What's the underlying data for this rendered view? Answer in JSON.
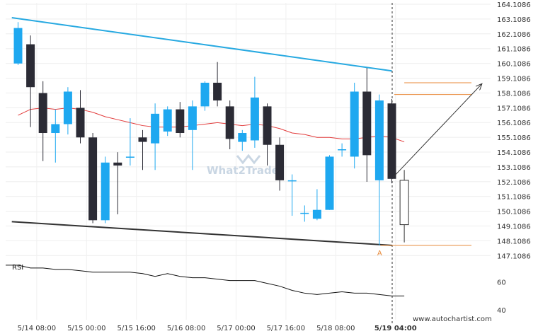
{
  "chart_data": {
    "type": "candlestick",
    "y_ticks": [
      "164.1086",
      "163.1086",
      "162.1086",
      "161.1086",
      "160.1086",
      "159.1086",
      "158.1086",
      "157.1086",
      "156.1086",
      "155.1086",
      "154.1086",
      "153.1086",
      "152.1086",
      "151.1086",
      "150.1086",
      "149.1086",
      "148.1086",
      "147.1086"
    ],
    "y_range": [
      146.6,
      164.2
    ],
    "x_ticks": [
      {
        "label": "5/14 08:00",
        "bar": 1.5
      },
      {
        "label": "5/15 00:00",
        "bar": 5.5
      },
      {
        "label": "5/15 16:00",
        "bar": 9.5
      },
      {
        "label": "5/16 08:00",
        "bar": 13.5
      },
      {
        "label": "5/17 00:00",
        "bar": 17.5
      },
      {
        "label": "5/17 16:00",
        "bar": 21.5
      },
      {
        "label": "5/18 08:00",
        "bar": 25.5
      },
      {
        "label": "5/19 04:00",
        "bar": 30.3,
        "bold": true
      }
    ],
    "candles": [
      {
        "o": 160.1,
        "h": 162.9,
        "l": 160.0,
        "c": 162.5
      },
      {
        "o": 161.4,
        "h": 162.0,
        "l": 155.8,
        "c": 158.5
      },
      {
        "o": 158.1,
        "h": 158.9,
        "l": 153.5,
        "c": 155.4
      },
      {
        "o": 155.4,
        "h": 157.0,
        "l": 153.4,
        "c": 156.0
      },
      {
        "o": 156.0,
        "h": 158.5,
        "l": 155.3,
        "c": 158.2
      },
      {
        "o": 157.1,
        "h": 158.3,
        "l": 154.7,
        "c": 155.1
      },
      {
        "o": 155.1,
        "h": 155.4,
        "l": 149.3,
        "c": 149.5
      },
      {
        "o": 149.5,
        "h": 153.8,
        "l": 149.3,
        "c": 153.4
      },
      {
        "o": 153.4,
        "h": 154.1,
        "l": 149.9,
        "c": 153.2
      },
      {
        "o": 153.8,
        "h": 156.4,
        "l": 153.2,
        "c": 153.8
      },
      {
        "o": 155.1,
        "h": 155.6,
        "l": 152.9,
        "c": 154.8
      },
      {
        "o": 154.7,
        "h": 157.4,
        "l": 152.9,
        "c": 156.7
      },
      {
        "o": 155.5,
        "h": 157.2,
        "l": 155.2,
        "c": 157.0
      },
      {
        "o": 157.0,
        "h": 157.5,
        "l": 155.1,
        "c": 155.4
      },
      {
        "o": 155.6,
        "h": 157.6,
        "l": 152.9,
        "c": 157.2
      },
      {
        "o": 157.2,
        "h": 158.9,
        "l": 156.9,
        "c": 158.8
      },
      {
        "o": 158.8,
        "h": 160.2,
        "l": 157.2,
        "c": 157.6
      },
      {
        "o": 157.2,
        "h": 157.6,
        "l": 154.3,
        "c": 155.0
      },
      {
        "o": 154.8,
        "h": 155.6,
        "l": 154.2,
        "c": 155.4
      },
      {
        "o": 154.9,
        "h": 159.2,
        "l": 154.4,
        "c": 157.8
      },
      {
        "o": 157.2,
        "h": 157.4,
        "l": 153.2,
        "c": 154.6
      },
      {
        "o": 154.6,
        "h": 155.1,
        "l": 151.5,
        "c": 152.2
      },
      {
        "o": 152.2,
        "h": 152.6,
        "l": 149.8,
        "c": 152.2
      },
      {
        "o": 150.0,
        "h": 150.5,
        "l": 149.4,
        "c": 150.0
      },
      {
        "o": 149.6,
        "h": 151.6,
        "l": 149.5,
        "c": 150.2
      },
      {
        "o": 150.2,
        "h": 153.9,
        "l": 150.2,
        "c": 153.8
      },
      {
        "o": 154.3,
        "h": 154.7,
        "l": 153.8,
        "c": 154.3
      },
      {
        "o": 153.8,
        "h": 158.8,
        "l": 153.0,
        "c": 158.2
      },
      {
        "o": 158.2,
        "h": 159.8,
        "l": 152.1,
        "c": 153.9
      },
      {
        "o": 152.2,
        "h": 158.0,
        "l": 147.8,
        "c": 157.6
      },
      {
        "o": 157.4,
        "h": 157.7,
        "l": 152.0,
        "c": 152.3
      },
      {
        "o": 149.2,
        "h": 152.9,
        "l": 148.0,
        "c": 152.2
      }
    ],
    "moving_average": [
      156.6,
      157.0,
      157.1,
      157.0,
      157.1,
      157.0,
      156.8,
      156.5,
      156.3,
      156.1,
      155.9,
      155.8,
      155.8,
      155.8,
      155.9,
      156.0,
      156.1,
      156.0,
      155.9,
      156.0,
      155.9,
      155.7,
      155.4,
      155.3,
      155.1,
      155.1,
      155.0,
      155.0,
      155.1,
      155.2,
      155.1,
      154.8
    ],
    "resistance_line": {
      "from": [
        -0.5,
        163.2
      ],
      "to": [
        30.0,
        159.6
      ]
    },
    "support_line": {
      "from": [
        -0.5,
        149.4
      ],
      "to": [
        30.0,
        147.8
      ]
    },
    "projection": {
      "from": [
        30.1,
        152.4
      ],
      "to": [
        37.2,
        158.7
      ]
    },
    "target_levels": [
      {
        "value": 158.8,
        "from_bar": 31.0
      },
      {
        "value": 158.0,
        "from_bar": 30.2
      }
    ],
    "support_level": {
      "value": 147.8,
      "from_bar": 29.1
    },
    "point_label": "A",
    "point_bar": 29.0,
    "current_time_bar": 30.0,
    "rsi": {
      "label": "RSI",
      "ticks": [
        60,
        40
      ],
      "range": [
        33,
        77
      ],
      "values": [
        72,
        70,
        70,
        69,
        69,
        68,
        67,
        67,
        67,
        67,
        66,
        64,
        66,
        64,
        63,
        63,
        62,
        61,
        61,
        61,
        59,
        57,
        54,
        52,
        51,
        52,
        53,
        52,
        52,
        51,
        50,
        50
      ]
    },
    "colors": {
      "bull": "#1ea8f0",
      "bear": "#2b2b35",
      "ma": "#e23b3b",
      "resistance": "#27a9e1",
      "support": "#333333",
      "level": "#e88a3a",
      "arrow": "#333333"
    }
  },
  "watermark": "What2Trade",
  "source": "www.autochartist.com"
}
